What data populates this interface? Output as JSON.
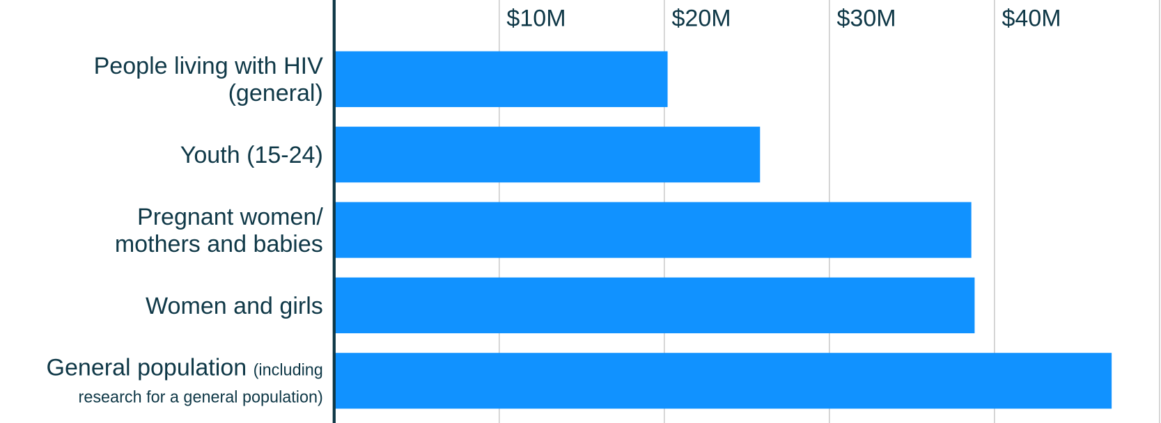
{
  "chart_data": {
    "type": "barh",
    "categories": [
      [
        "People living with HIV",
        "(general)"
      ],
      "Youth (15-24)",
      [
        "Pregnant women/",
        "mothers and babies"
      ],
      "Women and girls",
      "General population"
    ],
    "category_notes": [
      null,
      null,
      null,
      null,
      "(including research for a general population)"
    ],
    "values": [
      20.2,
      25.8,
      38.6,
      38.8,
      47.1
    ],
    "color": "#1192ff",
    "xlim": [
      0,
      50
    ],
    "xticks": [
      {
        "value": 10,
        "label": "$10M"
      },
      {
        "value": 20,
        "label": "$20M"
      },
      {
        "value": 30,
        "label": "$30M"
      },
      {
        "value": 40,
        "label": "$40M"
      }
    ],
    "grid": true
  }
}
